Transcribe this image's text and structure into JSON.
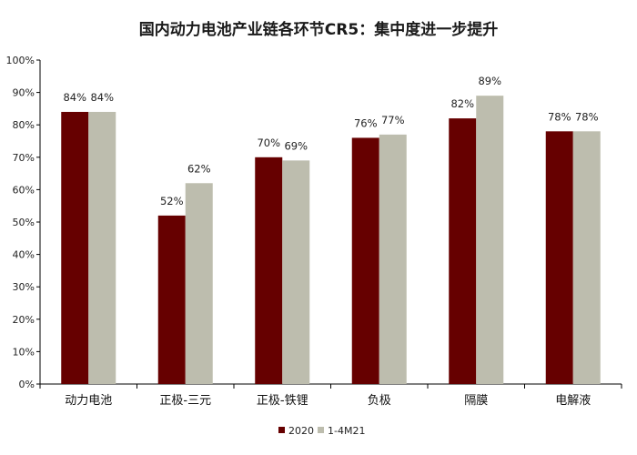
{
  "chart_data": {
    "type": "bar",
    "title": "国内动力电池产业链各环节CR5：集中度进一步提升",
    "categories": [
      "动力电池",
      "正极-三元",
      "正极-铁锂",
      "负极",
      "隔膜",
      "电解液"
    ],
    "series": [
      {
        "name": "2020",
        "values": [
          84,
          52,
          70,
          76,
          82,
          78
        ],
        "labels": [
          "84%",
          "52%",
          "70%",
          "76%",
          "82%",
          "78%"
        ]
      },
      {
        "name": "1-4M21",
        "values": [
          84,
          62,
          69,
          77,
          89,
          78
        ],
        "labels": [
          "84%",
          "62%",
          "69%",
          "77%",
          "89%",
          "78%"
        ]
      }
    ],
    "ylim": [
      0,
      100
    ],
    "yticks": [
      "0%",
      "10%",
      "20%",
      "30%",
      "40%",
      "50%",
      "60%",
      "70%",
      "80%",
      "90%",
      "100%"
    ],
    "legend_position": "bottom",
    "grid": false,
    "colors": [
      "#660000",
      "#bdbdae"
    ]
  }
}
